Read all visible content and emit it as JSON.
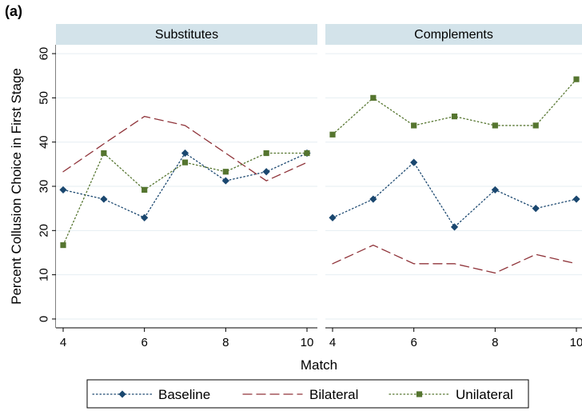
{
  "figure_label": "(a)",
  "chart_data": {
    "type": "line",
    "ylabel": "Percent Collusion Choice in First Stage",
    "xlabel": "Match",
    "x": [
      4,
      5,
      6,
      7,
      8,
      9,
      10
    ],
    "xticks": [
      4,
      6,
      8,
      10
    ],
    "yticks": [
      0,
      10,
      20,
      30,
      40,
      50,
      60
    ],
    "xlim": [
      4,
      10
    ],
    "ylim": [
      -2,
      62
    ],
    "grid": true,
    "legend_position": "bottom",
    "panels": [
      {
        "title": "Substitutes",
        "series": [
          {
            "name": "Baseline",
            "values": [
              29.2,
              27.1,
              22.9,
              37.5,
              31.25,
              33.3,
              37.5
            ]
          },
          {
            "name": "Bilateral",
            "values": [
              33.3,
              39.6,
              45.8,
              43.75,
              37.5,
              31.25,
              35.4
            ]
          },
          {
            "name": "Unilateral",
            "values": [
              16.7,
              37.5,
              29.2,
              35.4,
              33.3,
              37.5,
              37.5
            ]
          }
        ]
      },
      {
        "title": "Complements",
        "series": [
          {
            "name": "Baseline",
            "values": [
              22.9,
              27.1,
              35.4,
              20.8,
              29.2,
              25.0,
              27.1
            ]
          },
          {
            "name": "Bilateral",
            "values": [
              12.5,
              16.7,
              12.5,
              12.5,
              10.4,
              14.6,
              12.5
            ]
          },
          {
            "name": "Unilateral",
            "values": [
              41.7,
              50.0,
              43.75,
              45.8,
              43.75,
              43.75,
              54.2
            ]
          }
        ]
      }
    ],
    "series_styles": [
      {
        "name": "Baseline",
        "color": "#1a476f",
        "dash": "1.5,3",
        "marker": "diamond"
      },
      {
        "name": "Bilateral",
        "color": "#90353b",
        "dash": "11,6",
        "marker": "none"
      },
      {
        "name": "Unilateral",
        "color": "#55752f",
        "dash": "1.5,3",
        "marker": "square"
      }
    ],
    "colors": {
      "strip": "#d3e3ea",
      "grid": "#e6eef2",
      "axis": "#000000"
    }
  }
}
